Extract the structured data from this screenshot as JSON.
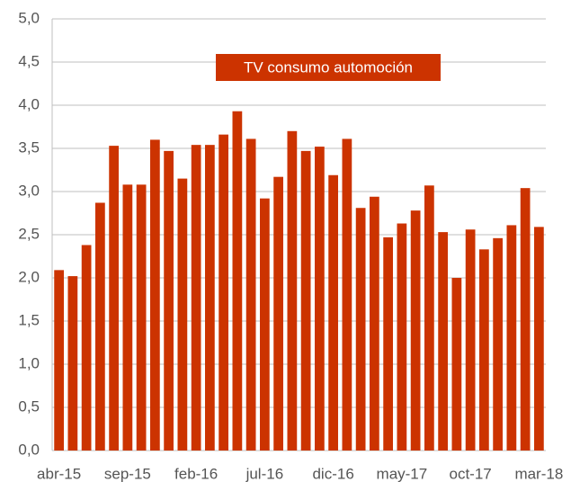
{
  "chart_data": {
    "type": "bar",
    "annotation": "TV consumo automoción",
    "categories": [
      "abr-15",
      null,
      null,
      null,
      null,
      "sep-15",
      null,
      null,
      null,
      null,
      "feb-16",
      null,
      null,
      null,
      null,
      "jul-16",
      null,
      null,
      null,
      null,
      "dic-16",
      null,
      null,
      null,
      null,
      "may-17",
      null,
      null,
      null,
      null,
      "oct-17",
      null,
      null,
      null,
      null,
      "mar-18"
    ],
    "values": [
      2.09,
      2.02,
      2.38,
      2.87,
      3.53,
      3.08,
      3.08,
      3.6,
      3.47,
      3.15,
      3.54,
      3.54,
      3.66,
      3.93,
      3.61,
      2.92,
      3.17,
      3.7,
      3.47,
      3.52,
      3.19,
      3.61,
      2.81,
      2.94,
      2.47,
      2.63,
      2.78,
      3.07,
      2.53,
      2.0,
      2.56,
      2.33,
      2.46,
      2.61,
      3.04,
      2.59
    ],
    "color": "#cc3300",
    "ylim": [
      0,
      5
    ],
    "yticks": [
      {
        "value": 0,
        "label": "0,0"
      },
      {
        "value": 0.5,
        "label": "0,5"
      },
      {
        "value": 1,
        "label": "1,0"
      },
      {
        "value": 1.5,
        "label": "1,5"
      },
      {
        "value": 2,
        "label": "2,0"
      },
      {
        "value": 2.5,
        "label": "2,5"
      },
      {
        "value": 3,
        "label": "3,0"
      },
      {
        "value": 3.5,
        "label": "3,5"
      },
      {
        "value": 4,
        "label": "4,0"
      },
      {
        "value": 4.5,
        "label": "4,5"
      },
      {
        "value": 5,
        "label": "5,0"
      }
    ],
    "grid": true
  }
}
